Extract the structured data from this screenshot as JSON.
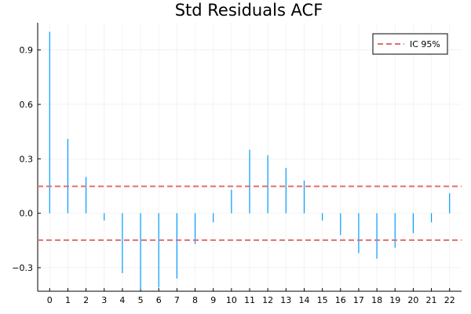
{
  "chart_data": {
    "type": "bar",
    "title": "Std Residuals ACF",
    "xlabel": "",
    "ylabel": "",
    "xlim": [
      -0.66,
      22.66
    ],
    "ylim": [
      -0.43,
      1.05
    ],
    "x_ticks": [
      0,
      1,
      2,
      3,
      4,
      5,
      6,
      7,
      8,
      9,
      10,
      11,
      12,
      13,
      14,
      15,
      16,
      17,
      18,
      19,
      20,
      21,
      22
    ],
    "y_ticks": [
      -0.3,
      0.0,
      0.3,
      0.6,
      0.9
    ],
    "y_tick_labels": [
      "−0.3",
      "0.0",
      "0.3",
      "0.6",
      "0.9"
    ],
    "grid": true,
    "legend_position": "top-right",
    "series": [
      {
        "x": [
          0,
          1,
          2,
          3,
          4,
          5,
          6,
          7,
          8,
          9,
          10,
          11,
          12,
          13,
          14,
          15,
          16,
          17,
          18,
          19,
          20,
          21,
          22
        ],
        "values": [
          1.0,
          0.41,
          0.2,
          -0.04,
          -0.33,
          -0.42,
          -0.41,
          -0.36,
          -0.17,
          -0.05,
          0.13,
          0.35,
          0.32,
          0.25,
          0.18,
          -0.04,
          -0.12,
          -0.22,
          -0.25,
          -0.19,
          -0.11,
          -0.05,
          0.11
        ],
        "color": "#009AFA"
      },
      {
        "name": "IC 95%",
        "values": [
          0.148,
          -0.148
        ],
        "color": "#E26F6F",
        "style": "dashed"
      }
    ]
  }
}
